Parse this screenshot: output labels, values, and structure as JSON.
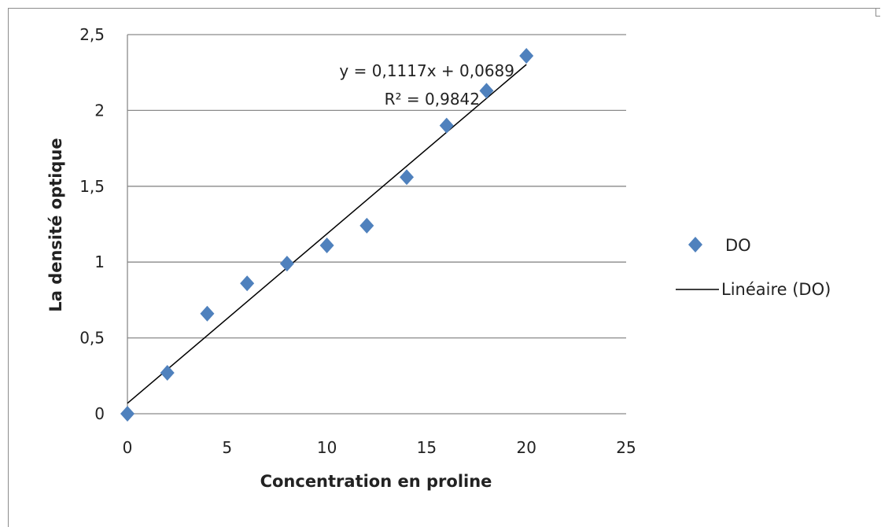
{
  "chart_data": {
    "type": "scatter",
    "title": "",
    "xlabel": "Concentration en proline",
    "ylabel": "La densité optique",
    "xlim": [
      0,
      25
    ],
    "ylim": [
      0,
      2.5
    ],
    "x_ticks": [
      0,
      5,
      10,
      15,
      20,
      25
    ],
    "x_tick_labels": [
      "0",
      "5",
      "10",
      "15",
      "20",
      "25"
    ],
    "y_ticks": [
      0,
      0.5,
      1,
      1.5,
      2,
      2.5
    ],
    "y_tick_labels": [
      "0",
      "0,5",
      "1",
      "1,5",
      "2",
      "2,5"
    ],
    "grid": "horizontal",
    "legend_position": "right",
    "series": [
      {
        "name": "DO",
        "marker": "diamond",
        "color": "#4f81bd",
        "x": [
          0,
          2,
          4,
          6,
          8,
          10,
          12,
          14,
          16,
          18,
          20
        ],
        "y": [
          0,
          0.27,
          0.66,
          0.86,
          0.99,
          1.11,
          1.24,
          1.56,
          1.9,
          2.13,
          2.36
        ]
      }
    ],
    "trendline": {
      "name": "Linéaire (DO)",
      "type": "linear",
      "color": "#000000",
      "slope": 0.1117,
      "intercept": 0.0689,
      "x_range": [
        0,
        20
      ],
      "equation_text": "y = 0,1117x + 0,0689",
      "r2_text": "R² = 0,9842"
    }
  }
}
